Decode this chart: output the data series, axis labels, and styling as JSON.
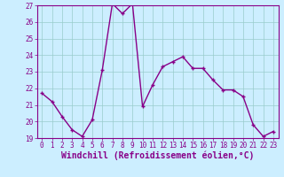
{
  "x": [
    0,
    1,
    2,
    3,
    4,
    5,
    6,
    7,
    8,
    9,
    10,
    11,
    12,
    13,
    14,
    15,
    16,
    17,
    18,
    19,
    20,
    21,
    22,
    23
  ],
  "y": [
    21.7,
    21.2,
    20.3,
    19.5,
    19.1,
    20.1,
    23.1,
    27.1,
    26.5,
    27.1,
    20.9,
    22.2,
    23.3,
    23.6,
    23.9,
    23.2,
    23.2,
    22.5,
    21.9,
    21.9,
    21.5,
    19.8,
    19.1,
    19.4
  ],
  "line_color": "#880088",
  "marker": "+",
  "bg_color": "#cceeff",
  "grid_color": "#99cccc",
  "xlabel": "Windchill (Refroidissement éolien,°C)",
  "ylim": [
    19,
    27
  ],
  "xlim_min": -0.5,
  "xlim_max": 23.5,
  "yticks": [
    19,
    20,
    21,
    22,
    23,
    24,
    25,
    26,
    27
  ],
  "xticks": [
    0,
    1,
    2,
    3,
    4,
    5,
    6,
    7,
    8,
    9,
    10,
    11,
    12,
    13,
    14,
    15,
    16,
    17,
    18,
    19,
    20,
    21,
    22,
    23
  ],
  "xlabel_fontsize": 7,
  "tick_fontsize": 5.5,
  "line_width": 1.0,
  "marker_size": 3,
  "marker_edge_width": 1.0
}
